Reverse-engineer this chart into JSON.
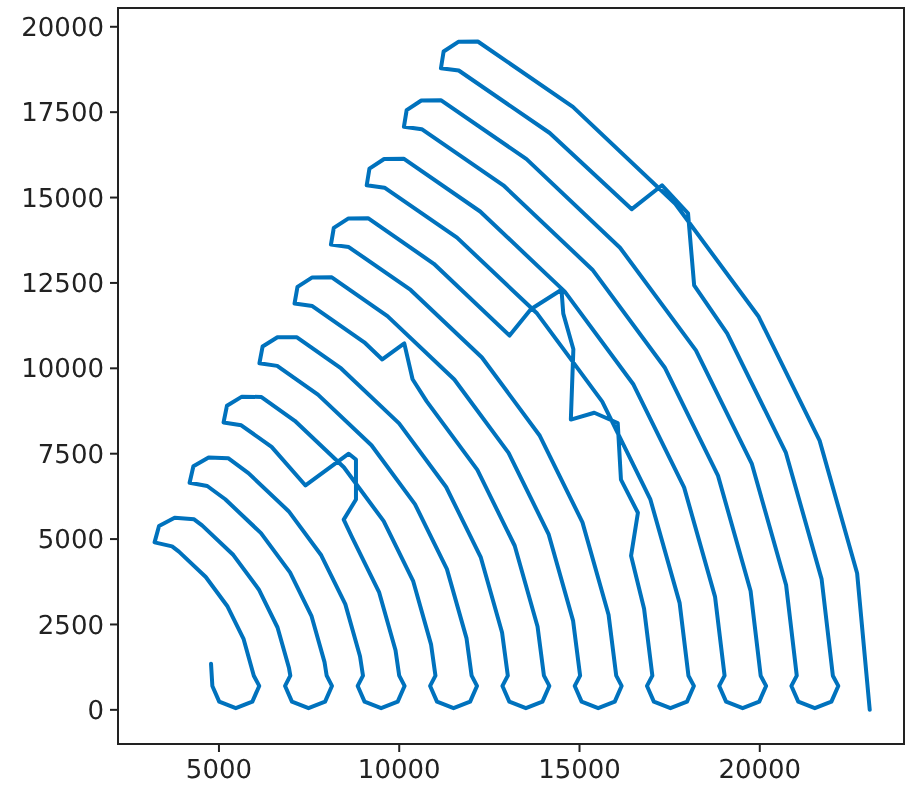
{
  "chart_data": {
    "type": "line",
    "xlim": [
      2200,
      24000
    ],
    "ylim": [
      -1000,
      20550
    ],
    "xticks": [
      5000,
      10000,
      15000,
      20000
    ],
    "yticks": [
      0,
      2500,
      5000,
      7500,
      10000,
      12500,
      15000,
      17500,
      20000
    ],
    "series": [
      {
        "color": "#0072bd",
        "x": [
          4780,
          4817,
          5007,
          5467,
          5927,
          6117,
          5967,
          5685,
          5239,
          4634,
          3889,
          3700,
          3214,
          3338,
          3771,
          4311,
          4532,
          5400,
          6105,
          6625,
          6943,
          6979,
          6834,
          7024,
          7484,
          7944,
          8134,
          7988,
          7928,
          7565,
          6971,
          6166,
          5175,
          4675,
          4186,
          4291,
          4714,
          5255,
          5817,
          6932,
          7837,
          8504,
          8912,
          8995,
          8848,
          9038,
          9498,
          9958,
          10148,
          10000,
          9897,
          9444,
          8703,
          8460,
          8800,
          8800,
          8600,
          7400,
          6460,
          5620,
          5128,
          5221,
          5637,
          6179,
          7103,
          8464,
          9569,
          10384,
          10882,
          11005,
          10857,
          11047,
          11507,
          11967,
          12157,
          12008,
          11867,
          11323,
          10435,
          9230,
          7746,
          6615,
          6123,
          6210,
          6622,
          7164,
          8389,
          9996,
          11301,
          12263,
          12852,
          13012,
          12863,
          13053,
          13513,
          13973,
          14163,
          14014,
          13836,
          13203,
          12167,
          10762,
          10370,
          10140,
          9530,
          9031,
          7590,
          7096,
          7178,
          7588,
          8130,
          9674,
          11528,
          13033,
          14142,
          14821,
          15017,
          14868,
          15058,
          15518,
          15978,
          16168,
          16019,
          15806,
          15082,
          13899,
          12294,
          10317,
          8600,
          8106,
          8185,
          8593,
          9135,
          10960,
          13060,
          13650,
          14500,
          14550,
          14830,
          14760,
          15410,
          16060,
          16150,
          16620,
          16430,
          16791,
          17021,
          16872,
          17062,
          17522,
          17982,
          18172,
          18022,
          17776,
          16962,
          15631,
          13826,
          11603,
          9592,
          9098,
          9174,
          9581,
          10123,
          12245,
          14592,
          16497,
          17901,
          18760,
          19024,
          18875,
          19065,
          19525,
          19985,
          20175,
          20025,
          19745,
          18841,
          17363,
          15358,
          12888,
          10624,
          10130,
          10206,
          10612,
          11154,
          13531,
          16124,
          18229,
          19781,
          20730,
          21026,
          20877,
          21067,
          21527,
          21987,
          22177,
          22027,
          21715,
          20720,
          19095,
          18180,
          18010,
          17290,
          16450,
          14174,
          11651,
          11157,
          11231,
          11638,
          12180,
          14817,
          17656,
          19961,
          21660,
          22700,
          23050
        ],
        "values": [
          1350,
          700,
          240,
          50,
          240,
          700,
          1000,
          2069,
          3025,
          3889,
          4634,
          4787,
          4903,
          5382,
          5623,
          5578,
          5400,
          4532,
          3525,
          2411,
          1224,
          1000,
          700,
          240,
          50,
          240,
          700,
          1000,
          1397,
          2753,
          4025,
          5175,
          6166,
          6554,
          6651,
          7134,
          7391,
          7368,
          6932,
          5817,
          4525,
          3095,
          1571,
          1000,
          700,
          240,
          50,
          240,
          700,
          1000,
          1745,
          3437,
          5025,
          5570,
          6160,
          7330,
          7500,
          6570,
          7698,
          8331,
          8416,
          8902,
          9170,
          9160,
          8464,
          7103,
          5525,
          3779,
          1918,
          1000,
          700,
          240,
          50,
          240,
          700,
          1000,
          2092,
          4121,
          6025,
          7746,
          9230,
          10071,
          10150,
          10637,
          10911,
          10907,
          9996,
          8389,
          6525,
          4463,
          2265,
          1000,
          700,
          240,
          50,
          240,
          700,
          1000,
          2439,
          4805,
          7025,
          9031,
          9680,
          10730,
          10260,
          10762,
          11823,
          11897,
          12384,
          12662,
          12665,
          11528,
          9674,
          7525,
          5147,
          2613,
          1000,
          700,
          240,
          50,
          240,
          700,
          1000,
          2786,
          5489,
          8025,
          10317,
          12294,
          13551,
          13622,
          14110,
          14390,
          14395,
          13060,
          10960,
          11730,
          12300,
          11600,
          10560,
          8500,
          8700,
          8400,
          6740,
          5770,
          4510,
          2960,
          1000,
          700,
          240,
          50,
          240,
          700,
          1000,
          3133,
          6173,
          9025,
          11603,
          13826,
          15290,
          15359,
          15847,
          16129,
          16137,
          14592,
          12245,
          9525,
          6515,
          3307,
          1000,
          700,
          240,
          50,
          240,
          700,
          1000,
          3481,
          6857,
          10025,
          12888,
          15358,
          17002,
          17070,
          17558,
          17841,
          17850,
          16124,
          13531,
          10525,
          7199,
          3654,
          1000,
          700,
          240,
          50,
          240,
          700,
          1000,
          3828,
          7541,
          11025,
          12430,
          14540,
          15360,
          14660,
          16890,
          18720,
          18786,
          19276,
          19559,
          19569,
          17656,
          14817,
          11525,
          7883,
          4001,
          0
        ]
      }
    ]
  }
}
